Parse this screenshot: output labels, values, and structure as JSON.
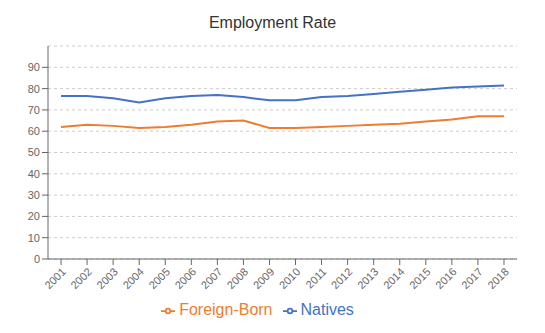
{
  "chart_data": {
    "type": "line",
    "title": "Employment Rate",
    "x": [
      2001,
      2002,
      2003,
      2004,
      2005,
      2006,
      2007,
      2008,
      2009,
      2010,
      2011,
      2012,
      2013,
      2014,
      2015,
      2016,
      2017,
      2018
    ],
    "series": [
      {
        "name": "Natives",
        "color": "#4472C4",
        "values": [
          76.5,
          76.5,
          75.5,
          73.5,
          75.5,
          76.5,
          77.0,
          76.0,
          74.5,
          74.5,
          76.0,
          76.5,
          77.5,
          78.5,
          79.5,
          80.5,
          81.0,
          81.5
        ]
      },
      {
        "name": "Foreign-Born",
        "color": "#ED7D31",
        "values": [
          62.0,
          63.0,
          62.5,
          61.5,
          62.0,
          63.0,
          64.5,
          65.0,
          61.5,
          61.5,
          62.0,
          62.5,
          63.0,
          63.5,
          64.5,
          65.5,
          67.0,
          67.0
        ]
      }
    ],
    "xlim": [
      2000.5,
      2018.5
    ],
    "xticks": [
      2001,
      2002,
      2003,
      2004,
      2005,
      2006,
      2007,
      2008,
      2009,
      2010,
      2011,
      2012,
      2013,
      2014,
      2015,
      2016,
      2017,
      2018
    ],
    "ylim": [
      0,
      100
    ],
    "yticks": [
      0,
      10,
      20,
      30,
      40,
      50,
      60,
      70,
      80,
      90
    ],
    "grid": true,
    "legend": "bottom"
  }
}
